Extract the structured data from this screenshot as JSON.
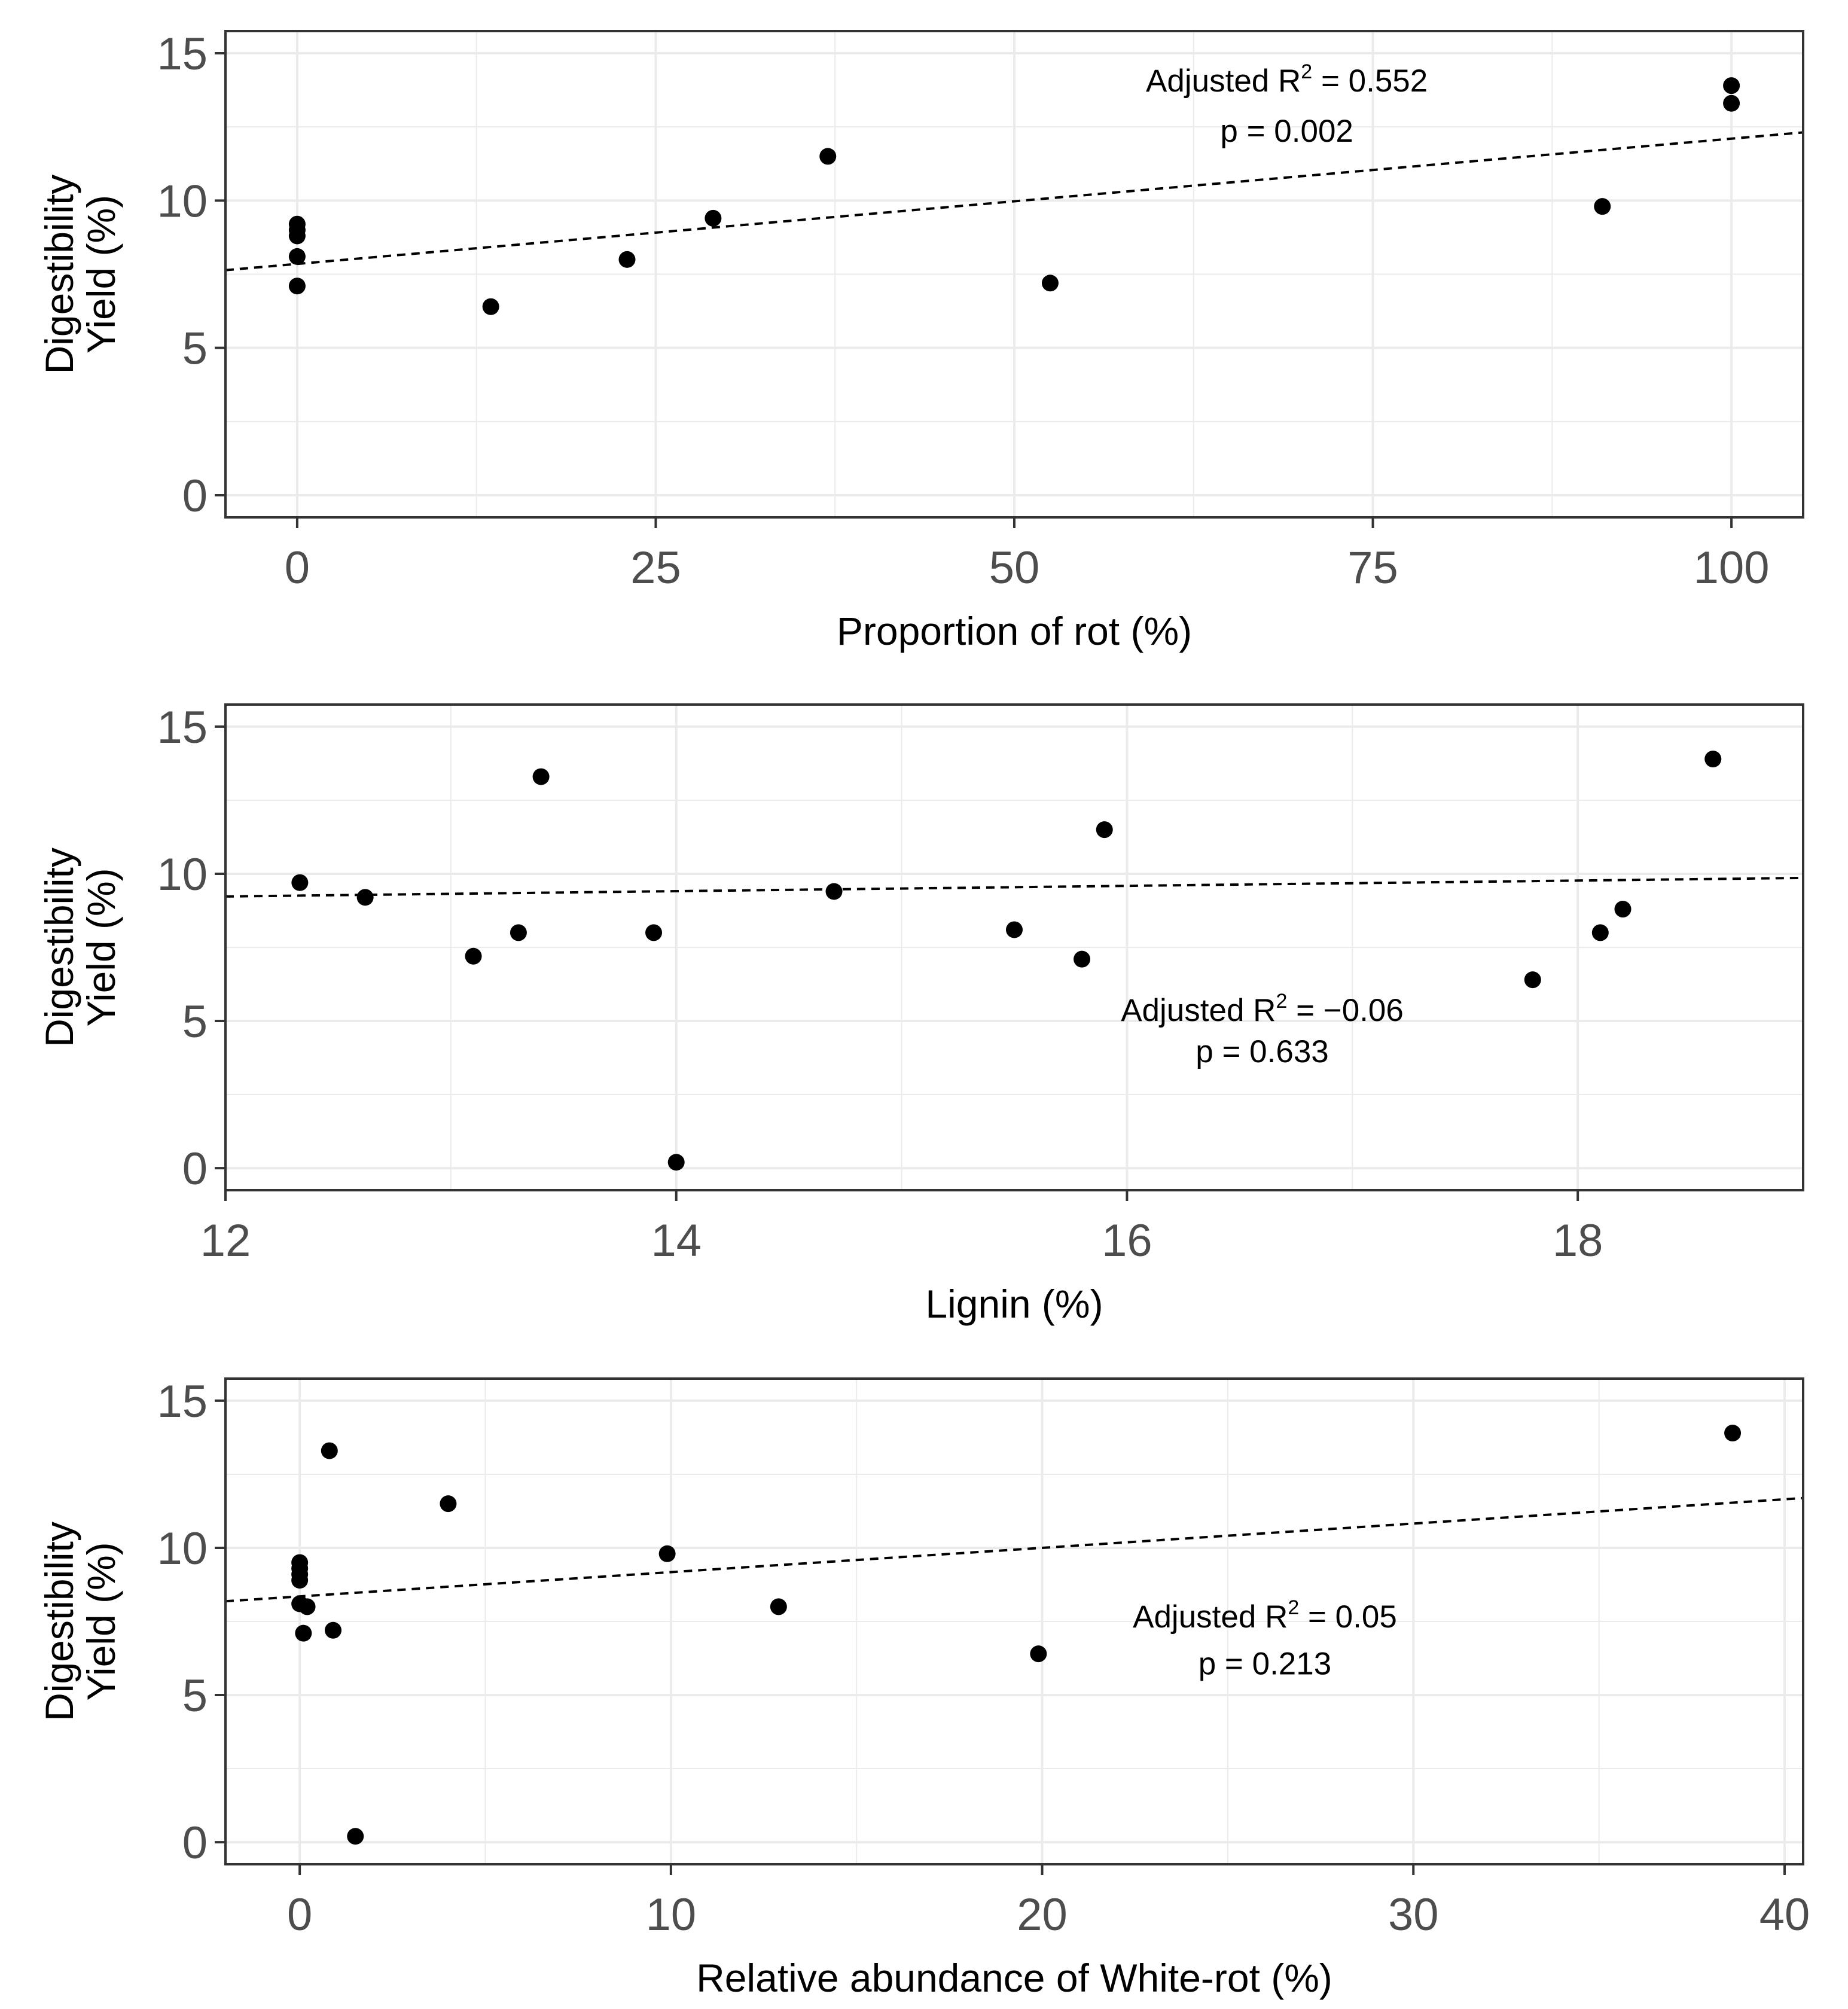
{
  "chart_data": [
    {
      "type": "scatter",
      "title": "",
      "xlabel": "Proportion of rot (%)",
      "ylabel_lines": [
        "Digestibility",
        "Yield (%)"
      ],
      "xlim": [
        -5,
        105
      ],
      "ylim": [
        -0.75,
        15.75
      ],
      "x_ticks": [
        0,
        25,
        50,
        75,
        100
      ],
      "x_tick_labels": [
        "0",
        "25",
        "50",
        "75",
        "100"
      ],
      "y_ticks": [
        0,
        5,
        10,
        15
      ],
      "y_tick_labels": [
        "0",
        "5",
        "10",
        "15"
      ],
      "grid": true,
      "points": [
        {
          "x": 0,
          "y": 9.2
        },
        {
          "x": 0,
          "y": 9.0
        },
        {
          "x": 0,
          "y": 8.8
        },
        {
          "x": 0,
          "y": 8.1
        },
        {
          "x": 0,
          "y": 7.1
        },
        {
          "x": 13.5,
          "y": 6.4
        },
        {
          "x": 23,
          "y": 8.0
        },
        {
          "x": 29,
          "y": 9.4
        },
        {
          "x": 37,
          "y": 11.5
        },
        {
          "x": 52.5,
          "y": 7.2
        },
        {
          "x": 91,
          "y": 9.8
        },
        {
          "x": 100,
          "y": 13.9
        },
        {
          "x": 100,
          "y": 13.3
        }
      ],
      "trendline": {
        "style": "dashed",
        "intercept": 7.85,
        "slope": 0.0425
      },
      "annotation": {
        "line1_prefix": "Adjusted R",
        "line1_sup": "2",
        "line1_suffix": " = 0.552",
        "line2": "p = 0.002",
        "x": 69,
        "y1": 13.7,
        "y2": 12.0
      }
    },
    {
      "type": "scatter",
      "title": "",
      "xlabel": "Lignin (%)",
      "ylabel_lines": [
        "Digestibility",
        "Yield (%)"
      ],
      "xlim": [
        12.0,
        19.0
      ],
      "ylim": [
        -0.75,
        15.75
      ],
      "x_ticks": [
        12,
        14,
        16,
        18
      ],
      "x_tick_labels": [
        "12",
        "14",
        "16",
        "18"
      ],
      "y_ticks": [
        0,
        5,
        10,
        15
      ],
      "y_tick_labels": [
        "0",
        "5",
        "10",
        "15"
      ],
      "grid": true,
      "points": [
        {
          "x": 12.33,
          "y": 9.7
        },
        {
          "x": 12.62,
          "y": 9.2
        },
        {
          "x": 13.1,
          "y": 7.2
        },
        {
          "x": 13.3,
          "y": 8.0
        },
        {
          "x": 13.4,
          "y": 13.3
        },
        {
          "x": 13.9,
          "y": 8.0
        },
        {
          "x": 14.0,
          "y": 0.2
        },
        {
          "x": 14.7,
          "y": 9.4
        },
        {
          "x": 15.5,
          "y": 8.1
        },
        {
          "x": 15.8,
          "y": 7.1
        },
        {
          "x": 15.9,
          "y": 11.5
        },
        {
          "x": 17.8,
          "y": 6.4
        },
        {
          "x": 18.1,
          "y": 8.0
        },
        {
          "x": 18.2,
          "y": 8.8
        },
        {
          "x": 18.6,
          "y": 13.9
        }
      ],
      "trendline": {
        "style": "dashed",
        "intercept": 8.15,
        "slope": 0.09
      },
      "annotation": {
        "line1_prefix": "Adjusted R",
        "line1_sup": "2",
        "line1_suffix": " = −0.06",
        "line2": "p = 0.633",
        "x": 16.6,
        "y1": 5.0,
        "y2": 3.6
      }
    },
    {
      "type": "scatter",
      "title": "",
      "xlabel": "Relative abundance of White-rot (%)",
      "ylabel_lines": [
        "Digestibility",
        "Yield (%)"
      ],
      "xlim": [
        -2,
        40.5
      ],
      "ylim": [
        -0.75,
        15.75
      ],
      "x_ticks": [
        0,
        10,
        20,
        30,
        40
      ],
      "x_tick_labels": [
        "0",
        "10",
        "20",
        "30",
        "40"
      ],
      "y_ticks": [
        0,
        5,
        10,
        15
      ],
      "y_tick_labels": [
        "0",
        "5",
        "10",
        "15"
      ],
      "grid": true,
      "points": [
        {
          "x": 0,
          "y": 9.5
        },
        {
          "x": 0,
          "y": 9.3
        },
        {
          "x": 0,
          "y": 9.1
        },
        {
          "x": 0,
          "y": 8.9
        },
        {
          "x": 0,
          "y": 8.1
        },
        {
          "x": 0.2,
          "y": 8.0
        },
        {
          "x": 0.1,
          "y": 7.1
        },
        {
          "x": 0.9,
          "y": 7.2
        },
        {
          "x": 0.8,
          "y": 13.3
        },
        {
          "x": 1.5,
          "y": 0.2
        },
        {
          "x": 4.0,
          "y": 11.5
        },
        {
          "x": 9.9,
          "y": 9.8
        },
        {
          "x": 12.9,
          "y": 8.0
        },
        {
          "x": 19.9,
          "y": 6.4
        },
        {
          "x": 38.6,
          "y": 13.9
        }
      ],
      "trendline": {
        "style": "dashed",
        "intercept": 8.35,
        "slope": 0.0825
      },
      "annotation": {
        "line1_prefix": "Adjusted R",
        "line1_sup": "2",
        "line1_suffix": " = 0.05",
        "line2": "p = 0.213",
        "x": 26,
        "y1": 7.3,
        "y2": 5.7
      }
    }
  ]
}
